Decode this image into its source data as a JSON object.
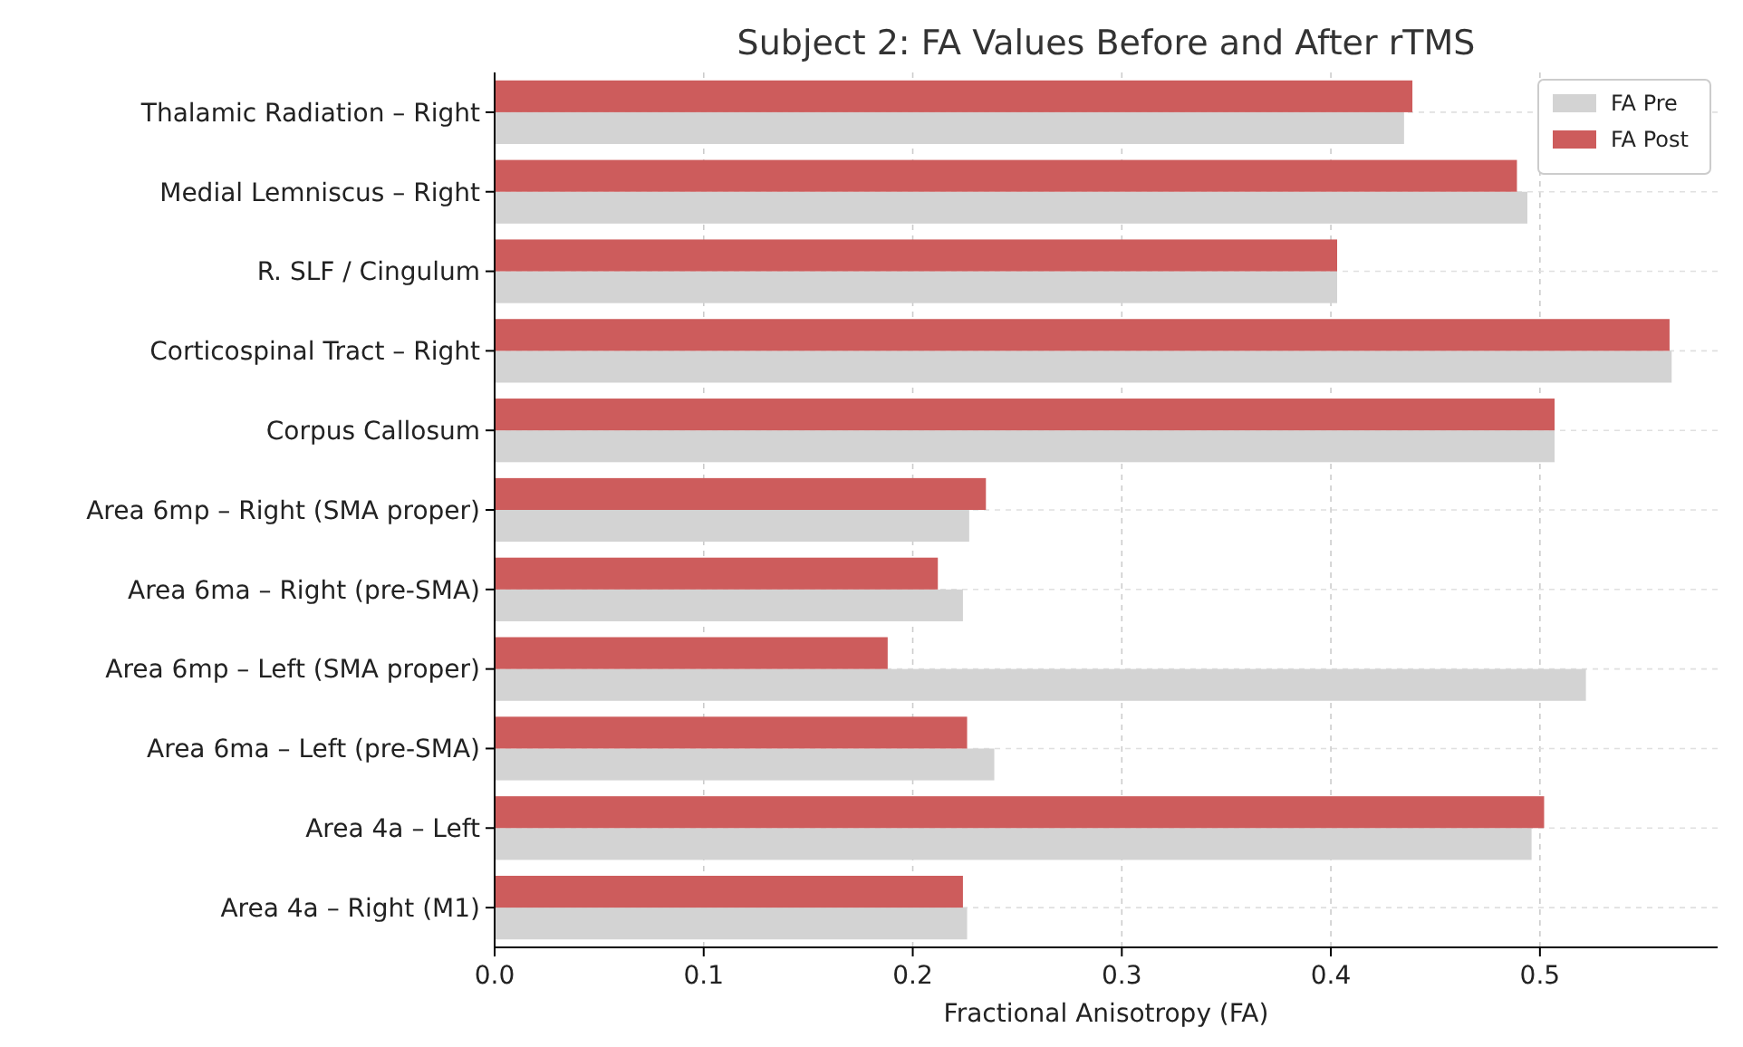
{
  "chart_data": {
    "type": "bar",
    "orientation": "horizontal",
    "title": "Subject 2: FA Values Before and After rTMS",
    "xlabel": "Fractional Anisotropy (FA)",
    "categories": [
      "Thalamic Radiation – Right",
      "Medial Lemniscus – Right",
      "R. SLF / Cingulum",
      "Corticospinal Tract – Right",
      "Corpus Callosum",
      "Area 6mp – Right (SMA proper)",
      "Area 6ma – Right (pre-SMA)",
      "Area 6mp – Left (SMA proper)",
      "Area 6ma – Left (pre-SMA)",
      "Area 4a – Left",
      "Area 4a – Right (M1)"
    ],
    "series": [
      {
        "name": "FA Pre",
        "color": "#d3d3d3",
        "values": [
          0.435,
          0.494,
          0.403,
          0.563,
          0.507,
          0.227,
          0.224,
          0.522,
          0.239,
          0.496,
          0.226
        ]
      },
      {
        "name": "FA Post",
        "color": "#cd5c5c",
        "values": [
          0.439,
          0.489,
          0.403,
          0.562,
          0.507,
          0.235,
          0.212,
          0.188,
          0.226,
          0.502,
          0.224
        ]
      }
    ],
    "xlim": [
      0,
      0.585
    ],
    "xticks": [
      {
        "value": 0,
        "label": "0.0"
      },
      0.1,
      0.2,
      0.3,
      0.4,
      0.5
    ],
    "grid": true,
    "legend": "top right"
  }
}
